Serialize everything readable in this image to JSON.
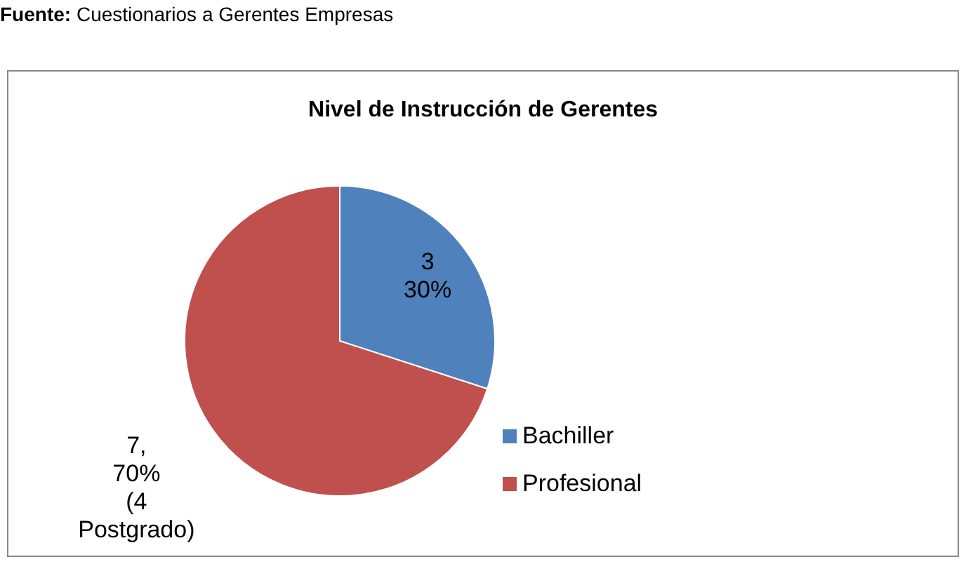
{
  "chart_data": {
    "type": "pie",
    "title": "Nivel de Instrucción de Gerentes",
    "annotations": [
      "Fuente: Cuestionarios a Gerentes Empresas"
    ],
    "categories": [
      "Bachiller",
      "Profesional"
    ],
    "values": [
      3,
      7
    ],
    "colors": [
      "#4f81bd",
      "#c0504d"
    ],
    "value_labels": [
      "3\n30%",
      "7,\n70%\n(4\nPostgrado)"
    ],
    "legend": "right"
  }
}
